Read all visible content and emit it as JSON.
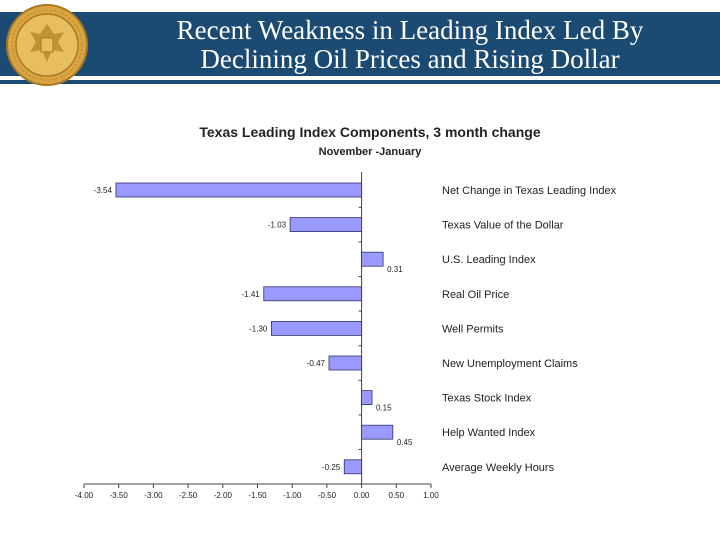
{
  "slide": {
    "title_line1": "Recent Weakness in Leading Index Led By",
    "title_line2": "Declining Oil Prices and Rising Dollar",
    "colors": {
      "header": "#1b4a73",
      "seal": "#d9a441"
    }
  },
  "chart_data": {
    "type": "bar",
    "orientation": "horizontal",
    "title": "Texas Leading Index Components, 3 month change",
    "subtitle": "November -January",
    "categories": [
      "Net Change in Texas Leading Index",
      "Texas Value of the Dollar",
      "U.S. Leading Index",
      "Real Oil Price",
      "Well Permits",
      "New Unemployment Claims",
      "Texas Stock Index",
      "Help Wanted Index",
      "Average Weekly Hours"
    ],
    "values": [
      -3.54,
      -1.03,
      0.31,
      -1.41,
      -1.3,
      -0.47,
      0.15,
      0.45,
      -0.25
    ],
    "value_labels": [
      "-3.54",
      "-1.03",
      "0.31",
      "-1.41",
      "-1.30",
      "-0.47",
      "0.15",
      "0.45",
      "-0.25"
    ],
    "xlim": [
      -4.0,
      1.0
    ],
    "xticks": [
      "-4.00",
      "-3.50",
      "-3.00",
      "-2.50",
      "-2.00",
      "-1.50",
      "-1.00",
      "-0.50",
      "0.00",
      "0.50",
      "1.00"
    ],
    "bar_color": "#9999ff",
    "grid": false,
    "legend": "none"
  }
}
